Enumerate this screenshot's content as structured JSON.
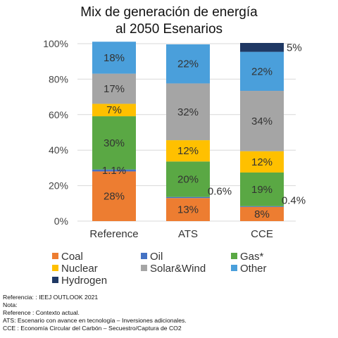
{
  "chart_data": {
    "type": "bar",
    "stacked": true,
    "title_lines": [
      "Mix de generación de energía",
      "al 2050 Esenarios"
    ],
    "categories": [
      "Reference",
      "ATS",
      "CCE"
    ],
    "ylim": [
      0,
      100
    ],
    "y_ticks": [
      "0%",
      "20%",
      "40%",
      "60%",
      "80%",
      "100%"
    ],
    "series": [
      {
        "name": "Coal",
        "color": "#ED7D31",
        "values": [
          28,
          13,
          8
        ],
        "labels": [
          "28%",
          "13%",
          "8%"
        ]
      },
      {
        "name": "Oil",
        "color": "#4472C4",
        "values": [
          1.1,
          0.6,
          0.4
        ],
        "labels": [
          "1.1%",
          "0.6%",
          "0.4%"
        ]
      },
      {
        "name": "Gas*",
        "color": "#5AA844",
        "values": [
          30,
          20,
          19
        ],
        "labels": [
          "30%",
          "20%",
          "19%"
        ]
      },
      {
        "name": "Nuclear",
        "color": "#FFC000",
        "values": [
          7,
          12,
          12
        ],
        "labels": [
          "7%",
          "12%",
          "12%"
        ]
      },
      {
        "name": "Solar&Wind",
        "color": "#A5A5A5",
        "values": [
          17,
          32,
          34
        ],
        "labels": [
          "17%",
          "32%",
          "34%"
        ]
      },
      {
        "name": "Other",
        "color": "#4A9FDB",
        "values": [
          18,
          22,
          22
        ],
        "labels": [
          "18%",
          "22%",
          "22%"
        ]
      },
      {
        "name": "Hydrogen",
        "color": "#1F3864",
        "values": [
          0,
          0,
          5
        ],
        "labels": [
          "",
          "",
          "5%"
        ]
      }
    ]
  },
  "notes": [
    "Referencia: : IEEJ OUTLOOK 2021",
    "Nota:",
    "Reference : Contexto actual.",
    "ATS: Escenario con avance en tecnología – Inversiones adicionales.",
    "CCE : Economía Circular del Carbón – Secuestro/Captura de CO2"
  ]
}
